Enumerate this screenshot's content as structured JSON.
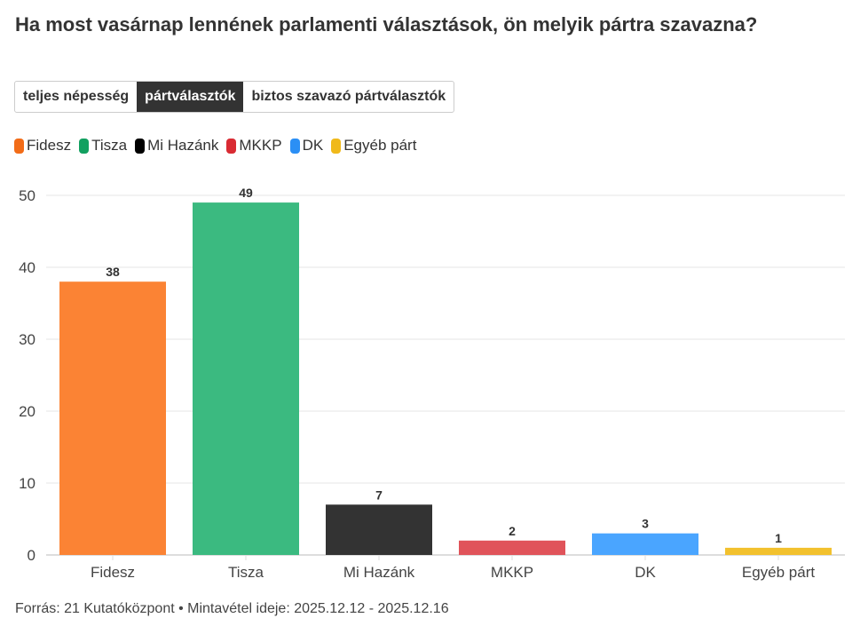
{
  "title": "Ha most vasárnap lennének parlamenti választások, ön melyik pártra szavazna?",
  "tabs": [
    {
      "label": "teljes népesség",
      "active": false
    },
    {
      "label": "pártválasztók",
      "active": true
    },
    {
      "label": "biztos szavazó pártválasztók",
      "active": false
    }
  ],
  "footer": "Forrás: 21 Kutatóközpont • Mintavétel ideje: 2025.12.12 - 2025.12.16",
  "chart_data": {
    "type": "bar",
    "categories": [
      "Fidesz",
      "Tisza",
      "Mi Hazánk",
      "MKKP",
      "DK",
      "Egyéb párt"
    ],
    "values": [
      38,
      49,
      7,
      2,
      3,
      1
    ],
    "colors": [
      "#fb8334",
      "#3bba80",
      "#333333",
      "#e0535a",
      "#4aa5ff",
      "#f2c12e"
    ],
    "legend": [
      "Fidesz",
      "Tisza",
      "Mi Hazánk",
      "MKKP",
      "DK",
      "Egyéb párt"
    ],
    "legend_colors": [
      "#f26c18",
      "#12a060",
      "#000000",
      "#d92b33",
      "#2b8ff5",
      "#f0b91a"
    ],
    "yticks": [
      0,
      10,
      20,
      30,
      40,
      50
    ],
    "ylim": [
      0,
      50
    ],
    "grid": true,
    "legend_position": "top-left"
  }
}
